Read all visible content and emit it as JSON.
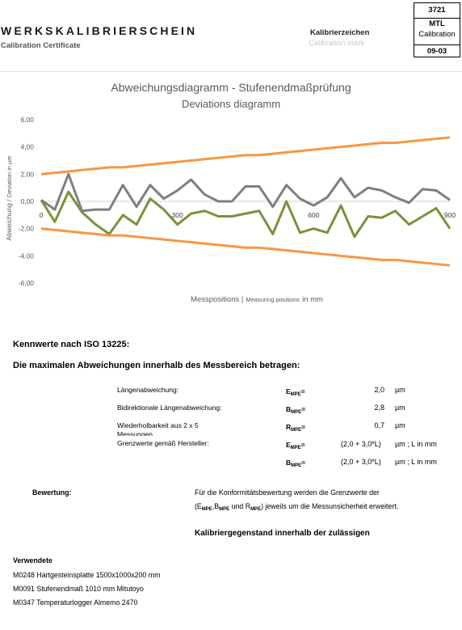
{
  "header": {
    "title": "WERKSKALIBRIERSCHEIN",
    "subtitle": "Calibration Certificate",
    "mark_de": "Kalibrierzeichen",
    "mark_en": "Calibration mark",
    "id_number": "3721",
    "id_lab": "MTL",
    "id_type": "Calibration",
    "id_date": "09-03"
  },
  "chart_data": {
    "type": "line",
    "title": "Abweichungsdiagramm - Stufenendmaßprüfung",
    "subtitle": "Deviations diagramm",
    "ylabel_de": "Abweichung / ",
    "ylabel_en": "Deviation in µm",
    "xlabel_de": "Messpositions |",
    "xlabel_en": "Measuring positions",
    "xlabel_unit": "in mm",
    "xlim": [
      0,
      900
    ],
    "ylim": [
      -6,
      6
    ],
    "ytick_labels": [
      "6,00",
      "4,00",
      "2,00",
      "0,00",
      "-2,00",
      "-4,00",
      "-6,00"
    ],
    "xtick_labels": [
      "0",
      "300",
      "600",
      "900"
    ],
    "ytick_values": [
      6,
      4,
      2,
      0,
      -2,
      -4,
      -6
    ],
    "xtick_values": [
      0,
      300,
      600,
      900
    ],
    "x": [
      0,
      30,
      60,
      90,
      120,
      150,
      180,
      210,
      240,
      270,
      300,
      330,
      360,
      390,
      420,
      450,
      480,
      510,
      540,
      570,
      600,
      630,
      660,
      690,
      720,
      750,
      780,
      810,
      840,
      870,
      900
    ],
    "series": [
      {
        "color": "#7f7f7f",
        "values": [
          0.1,
          -0.6,
          2.0,
          -0.7,
          -0.6,
          -0.6,
          1.2,
          -0.4,
          1.2,
          0.2,
          0.8,
          1.6,
          0.5,
          0.0,
          0.0,
          1.1,
          1.1,
          -0.4,
          1.2,
          0.2,
          -0.3,
          0.3,
          1.7,
          0.3,
          1.0,
          0.8,
          0.3,
          -0.1,
          0.9,
          0.8,
          0.1
        ]
      },
      {
        "color": "#77933c",
        "values": [
          0.1,
          -1.5,
          0.7,
          -0.8,
          -1.7,
          -2.4,
          -1.0,
          -1.7,
          0.2,
          -0.6,
          -1.7,
          -0.9,
          -0.7,
          -1.1,
          -1.1,
          -0.9,
          -0.7,
          -2.4,
          0.0,
          -2.3,
          -2.0,
          -2.3,
          -0.3,
          -2.6,
          -1.1,
          -1.2,
          -0.7,
          -1.7,
          -1.1,
          -0.5,
          -2.0
        ]
      },
      {
        "color": "#f79646",
        "values": [
          2.0,
          2.1,
          2.2,
          2.3,
          2.4,
          2.5,
          2.5,
          2.6,
          2.7,
          2.8,
          2.9,
          3.0,
          3.1,
          3.2,
          3.3,
          3.4,
          3.4,
          3.5,
          3.6,
          3.7,
          3.8,
          3.9,
          4.0,
          4.1,
          4.2,
          4.3,
          4.3,
          4.4,
          4.5,
          4.6,
          4.7
        ]
      },
      {
        "color": "#f79646",
        "values": [
          -2.0,
          -2.1,
          -2.2,
          -2.3,
          -2.4,
          -2.5,
          -2.5,
          -2.6,
          -2.7,
          -2.8,
          -2.9,
          -3.0,
          -3.1,
          -3.2,
          -3.3,
          -3.4,
          -3.4,
          -3.5,
          -3.6,
          -3.7,
          -3.8,
          -3.9,
          -4.0,
          -4.1,
          -4.2,
          -4.3,
          -4.3,
          -4.4,
          -4.5,
          -4.6,
          -4.7
        ]
      }
    ],
    "grid": false,
    "legend": "none"
  },
  "body": {
    "kennwerte": "Kennwerte nach ISO 13225:",
    "max_dev": "Die maximalen Abweichungen innerhalb des Messbereich betragen:",
    "rows": [
      {
        "label": "Längenabweichung:",
        "sym": "E",
        "sub": "MPE",
        "eq": "=",
        "value": "2,0",
        "unit": "µm"
      },
      {
        "label": "Bidirektionale Längenabweichung:",
        "sym": "B",
        "sub": "MPE",
        "eq": "=",
        "value": "2,8",
        "unit": "µm"
      },
      {
        "label": "Wiederholbarkeit aus 2 x 5",
        "label2": "Messungen",
        "sym": "R",
        "sub": "MPE",
        "eq": "=",
        "value": "0,7",
        "unit": "µm"
      }
    ],
    "limits_label": "Grenzwerte gemäß Hersteller:",
    "limits": [
      {
        "sym": "E",
        "sub": "MPE",
        "eq": "=",
        "value": "(2,0 + 3,0*L)",
        "unit": "µm ; L in mm"
      },
      {
        "sym": "B",
        "sub": "MPE",
        "eq": "=",
        "value": "(2,0 + 3,0*L)",
        "unit": "µm ; L in mm"
      }
    ],
    "bewertung_label": "Bewertung:",
    "bewertung_line1": "Für die Konformitätsbewertung werden die Grenzwerte der",
    "bew_open": "(E",
    "bew_sub1": "MPE",
    "bew_mid1": ",B",
    "bew_sub2": "MPE",
    "bew_mid2": " und R",
    "bew_sub3": "MPE",
    "bew_close": ") jeweils um die Messunsicherheit erweitert.",
    "result": "Kalibriergegenstand innerhalb der zulässigen",
    "verwendete": "Verwendete",
    "equipment": [
      "M0248 Hartgesteinsplatte 1500x1000x200 mm",
      "M0091 Stufenendmaß 1010 mm Mitutoyo",
      "M0347 Temperaturlogger Almemo 2470"
    ]
  }
}
